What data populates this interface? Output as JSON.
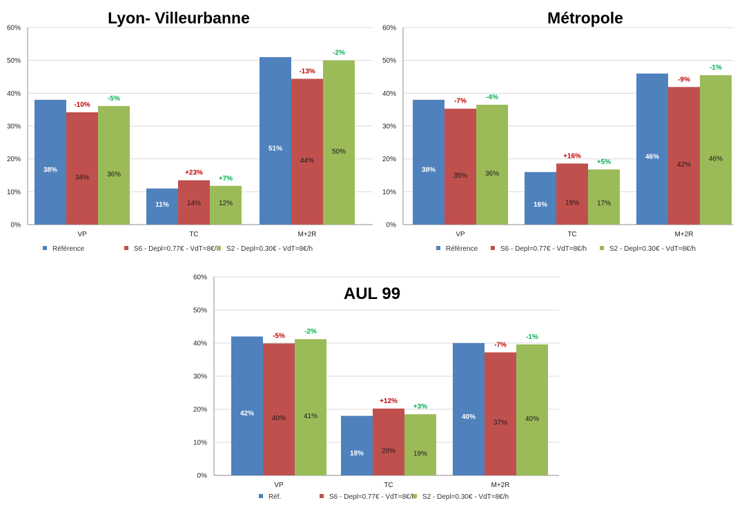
{
  "chart_data": [
    {
      "type": "bar",
      "title": "Lyon- Villeurbanne",
      "categories": [
        "VP",
        "TC",
        "M+2R"
      ],
      "ylim": [
        0,
        60
      ],
      "yticks": [
        "0%",
        "10%",
        "20%",
        "30%",
        "40%",
        "50%",
        "60%"
      ],
      "grid": true,
      "legend_position": "bottom",
      "series": [
        {
          "name": "Référence",
          "color": "#4F81BD",
          "values": [
            38,
            11,
            51
          ],
          "labels": [
            "38%",
            "11%",
            "51%"
          ]
        },
        {
          "name": "S6 - Depl=0.77€ - VdT=8€/h",
          "color": "#C0504D",
          "values": [
            34.2,
            13.5,
            44.4
          ],
          "labels": [
            "34%",
            "14%",
            "44%"
          ],
          "changes": [
            "-10%",
            "+23%",
            "-13%"
          ],
          "change_color": "#C00000"
        },
        {
          "name": "S2 - Depl=0.30€ - VdT=8€/h",
          "color": "#9BBB59",
          "values": [
            36.1,
            11.8,
            50
          ],
          "labels": [
            "36%",
            "12%",
            "50%"
          ],
          "changes": [
            "-5%",
            "+7%",
            "-2%"
          ],
          "change_color": "#00B050"
        }
      ]
    },
    {
      "type": "bar",
      "title": "Métropole",
      "categories": [
        "VP",
        "TC",
        "M+2R"
      ],
      "ylim": [
        0,
        60
      ],
      "yticks": [
        "0%",
        "10%",
        "20%",
        "30%",
        "40%",
        "50%",
        "60%"
      ],
      "grid": true,
      "legend_position": "bottom",
      "series": [
        {
          "name": "Référence",
          "color": "#4F81BD",
          "values": [
            38,
            16,
            46
          ],
          "labels": [
            "38%",
            "16%",
            "46%"
          ]
        },
        {
          "name": "S6 - Depl=0.77€ - VdT=8€/h",
          "color": "#C0504D",
          "values": [
            35.3,
            18.6,
            41.9
          ],
          "labels": [
            "35%",
            "19%",
            "42%"
          ],
          "changes": [
            "-7%",
            "+16%",
            "-9%"
          ],
          "change_color": "#C00000"
        },
        {
          "name": "S2 - Depl=0.30€ - VdT=8€/h",
          "color": "#9BBB59",
          "values": [
            36.5,
            16.8,
            45.5
          ],
          "labels": [
            "36%",
            "17%",
            "46%"
          ],
          "changes": [
            "-4%",
            "+5%",
            "-1%"
          ],
          "change_color": "#00B050"
        }
      ]
    },
    {
      "type": "bar",
      "title": "AUL 99",
      "categories": [
        "VP",
        "TC",
        "M+2R"
      ],
      "ylim": [
        0,
        60
      ],
      "yticks": [
        "0%",
        "10%",
        "20%",
        "30%",
        "40%",
        "50%",
        "60%"
      ],
      "grid": true,
      "legend_position": "bottom",
      "series": [
        {
          "name": "Réf.",
          "color": "#4F81BD",
          "values": [
            42,
            18,
            40
          ],
          "labels": [
            "42%",
            "18%",
            "40%"
          ]
        },
        {
          "name": "S6 - Depl=0.77€ - VdT=8€/h",
          "color": "#C0504D",
          "values": [
            39.9,
            20.2,
            37.2
          ],
          "labels": [
            "40%",
            "20%",
            "37%"
          ],
          "changes": [
            "-5%",
            "+12%",
            "-7%"
          ],
          "change_color": "#C00000"
        },
        {
          "name": "S2 - Depl=0.30€ - VdT=8€/h",
          "color": "#9BBB59",
          "values": [
            41.2,
            18.5,
            39.6
          ],
          "labels": [
            "41%",
            "19%",
            "40%"
          ],
          "changes": [
            "-2%",
            "+3%",
            "-1%"
          ],
          "change_color": "#00B050"
        }
      ]
    }
  ]
}
